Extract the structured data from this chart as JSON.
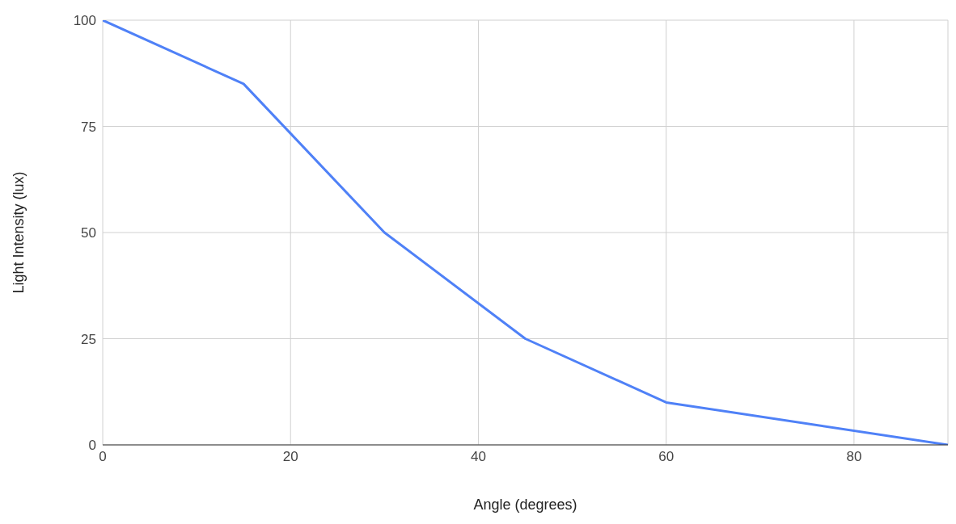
{
  "chart_data": {
    "type": "line",
    "xlabel": "Angle (degrees)",
    "ylabel": "Light Intensity (lux)",
    "x": [
      0,
      15,
      30,
      45,
      60,
      90
    ],
    "series": [
      {
        "color": "#4f81f7",
        "values": [
          100,
          85,
          50,
          25,
          10,
          0
        ]
      }
    ],
    "xlim": [
      0,
      90
    ],
    "xticks": [
      0,
      20,
      40,
      60,
      80
    ],
    "ylim": [
      0,
      100
    ],
    "yticks": [
      0,
      25,
      50,
      75,
      100
    ],
    "grid": true,
    "marker": "none",
    "line_style": "solid",
    "legend": false
  }
}
